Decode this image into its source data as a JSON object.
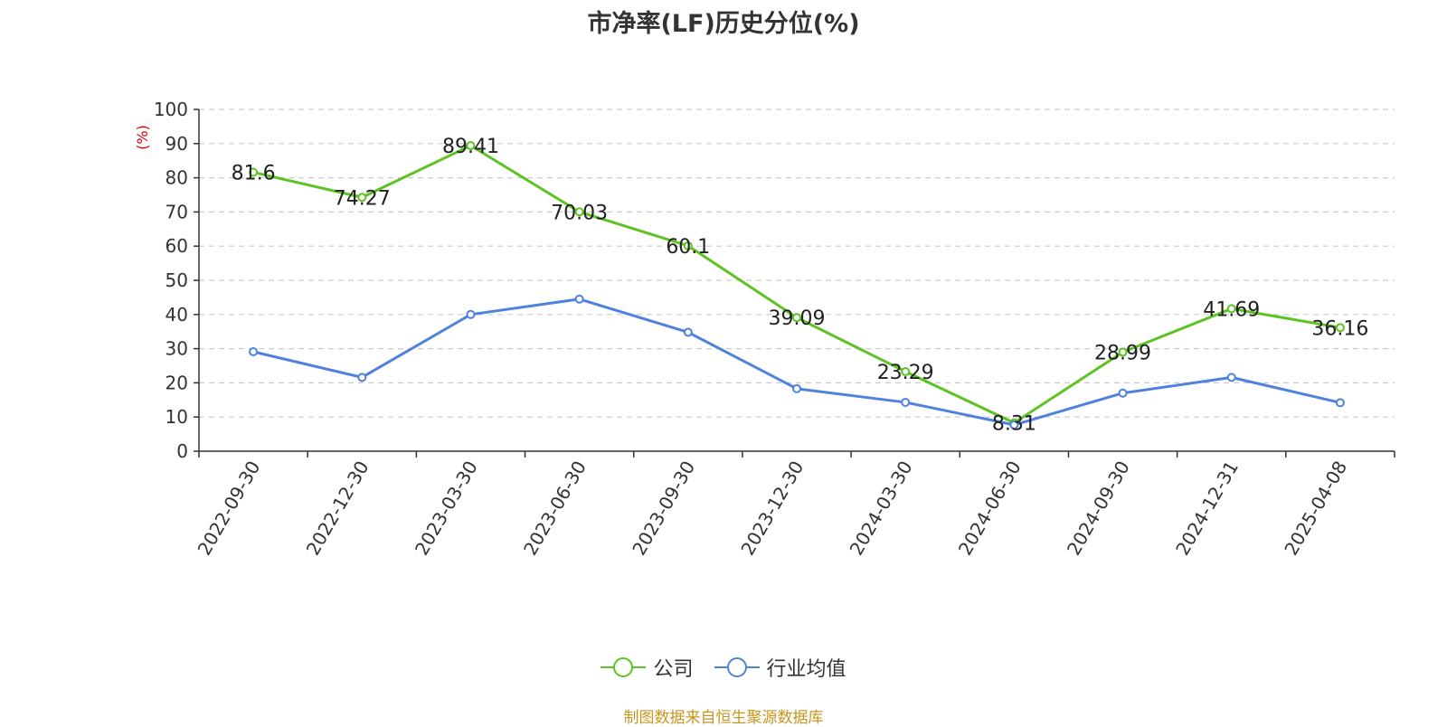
{
  "chart_data": {
    "type": "line",
    "title": "市净率(LF)历史分位(%)",
    "ylabel": "(%)",
    "xlabel": "",
    "ylim": [
      0,
      100
    ],
    "yticks": [
      "0",
      "10",
      "20",
      "30",
      "40",
      "50",
      "60",
      "70",
      "80",
      "90",
      "100"
    ],
    "categories": [
      "2022-09-30",
      "2022-12-30",
      "2023-03-30",
      "2023-06-30",
      "2023-09-30",
      "2023-12-30",
      "2024-03-30",
      "2024-06-30",
      "2024-09-30",
      "2024-12-31",
      "2025-04-08"
    ],
    "series": [
      {
        "name": "公司",
        "color": "#5cc323",
        "values": [
          81.6,
          74.27,
          89.41,
          70.03,
          60.1,
          39.09,
          23.29,
          8.31,
          28.99,
          41.69,
          36.16
        ],
        "labels": [
          "81.6",
          "74.27",
          "89.41",
          "70.03",
          "60.1",
          "39.09",
          "23.29",
          "8.31",
          "28.99",
          "41.69",
          "36.16"
        ]
      },
      {
        "name": "行业均值",
        "color": "#4f82de",
        "values": [
          29.1,
          21.6,
          40.0,
          44.5,
          34.8,
          18.3,
          14.3,
          7.7,
          17.0,
          21.6,
          14.2
        ]
      }
    ],
    "grid": true,
    "legend": "bottom-center"
  },
  "source_note": "制图数据来自恒生聚源数据库"
}
